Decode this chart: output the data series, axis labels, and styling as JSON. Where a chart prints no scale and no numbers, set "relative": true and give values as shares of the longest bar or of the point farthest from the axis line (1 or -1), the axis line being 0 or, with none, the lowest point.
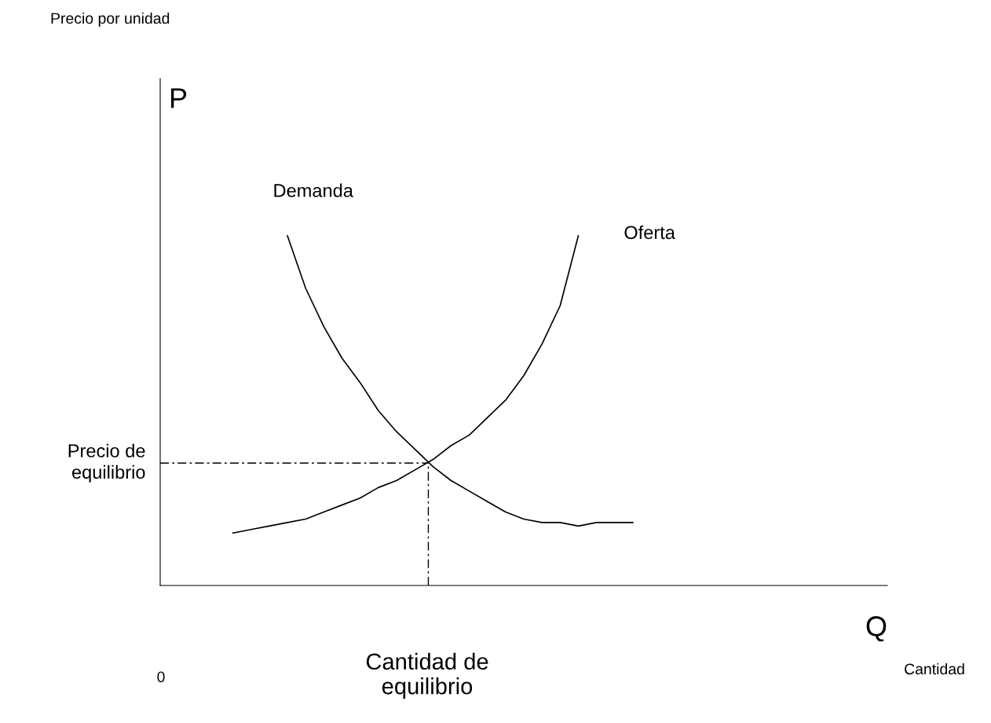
{
  "chart_data": {
    "type": "line",
    "relative": true,
    "ylabel": "P",
    "xlabel": "Q",
    "annotations": [
      "Precio por unidad",
      "0",
      "Cantidad",
      "Cantidad de equilibrio"
    ],
    "categories": [
      null,
      null,
      null,
      null,
      null,
      null,
      null,
      null,
      null,
      null,
      null,
      null,
      null,
      null,
      null,
      null,
      null,
      null,
      null,
      null,
      null,
      null,
      null,
      null,
      null,
      null,
      null,
      null,
      null,
      null,
      null,
      null,
      null,
      null,
      null,
      null,
      null,
      null,
      null,
      null,
      null
    ],
    "series": [
      {
        "name": "Demanda",
        "color": "#000000",
        "values": [
          null,
          null,
          null,
          null,
          null,
          null,
          null,
          1,
          0.85,
          0.74,
          0.65,
          0.58,
          0.5,
          0.44,
          0.39,
          0.34,
          0.3,
          0.27,
          0.24,
          0.21,
          0.19,
          0.18,
          0.18,
          0.17,
          0.18,
          0.18,
          0.18,
          null,
          null,
          null,
          null,
          null,
          null,
          null,
          null,
          null,
          null,
          null,
          null,
          null,
          null
        ]
      },
      {
        "name": "Oferta",
        "color": "#000000",
        "values": [
          null,
          null,
          null,
          null,
          0.15,
          0.16,
          0.17,
          0.18,
          0.19,
          0.21,
          0.23,
          0.25,
          0.28,
          0.3,
          0.33,
          0.36,
          0.4,
          0.43,
          0.48,
          0.53,
          0.6,
          0.69,
          0.8,
          1,
          null,
          null,
          null,
          null,
          null,
          null,
          null,
          null,
          null,
          null,
          null,
          null,
          null,
          null,
          null,
          null,
          null
        ]
      }
    ],
    "ref_lines": [
      {
        "axis": "y",
        "value": 0.35,
        "label": "Precio de equilibrio",
        "color": "#000000",
        "line_style": "dashed"
      }
    ],
    "legend": false,
    "marker": "none",
    "line_style": "solid"
  }
}
